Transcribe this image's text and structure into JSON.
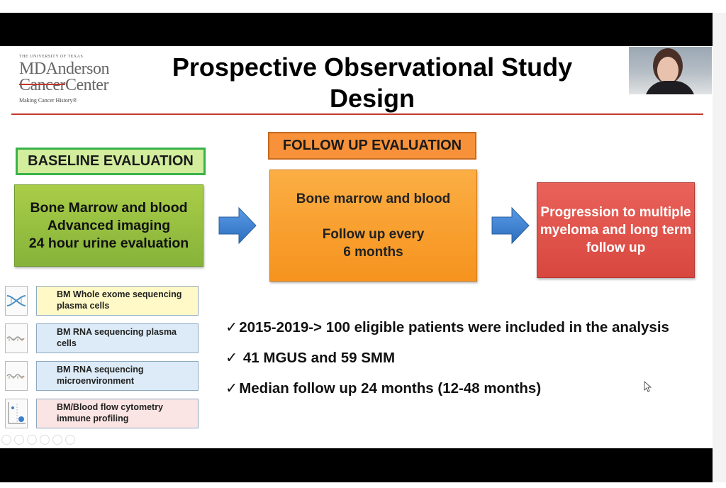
{
  "logo": {
    "university": "THE UNIVERSITY OF TEXAS",
    "line1": "MDAnderson",
    "line2_strike": "Cancer",
    "line2_rest": "Center",
    "tagline": "Making Cancer History®"
  },
  "title": {
    "line1": "Prospective Observational Study",
    "line2": "Design"
  },
  "baseline": {
    "label": "BASELINE EVALUATION",
    "items": [
      "Bone Marrow and blood",
      "Advanced imaging",
      "24 hour urine evaluation"
    ]
  },
  "followup": {
    "label": "FOLLOW UP EVALUATION",
    "line1": "Bone marrow and blood",
    "line2": "Follow up every",
    "line3": "6 months"
  },
  "progression": {
    "text": "Progression to multiple myeloma and long term follow up"
  },
  "sequencing": [
    {
      "line1": "BM Whole exome sequencing",
      "line2": "plasma cells",
      "icon": "dna-helix-icon"
    },
    {
      "line1": "BM RNA sequencing plasma",
      "line2": "cells",
      "icon": "rna-strand-icon"
    },
    {
      "line1": "BM RNA sequencing",
      "line2": "microenvironment",
      "icon": "rna-strand-icon"
    },
    {
      "line1": "BM/Blood flow cytometry",
      "line2": "immune profiling",
      "icon": "flow-cytometry-plot-icon"
    }
  ],
  "bullets": [
    {
      "check": "✓",
      "text": "2015-2019-> 100 eligible patients were included in the analysis"
    },
    {
      "check": "✓",
      "text": " 41 MGUS and 59 SMM"
    },
    {
      "check": "✓",
      "text": "Median follow up 24 months (12-48 months)"
    }
  ],
  "colors": {
    "baseline_green": "#86b33a",
    "followup_orange": "#f6931e",
    "progression_red": "#d8473f",
    "arrow_blue": "#3a7fd0",
    "title_rule": "#c0392b"
  }
}
